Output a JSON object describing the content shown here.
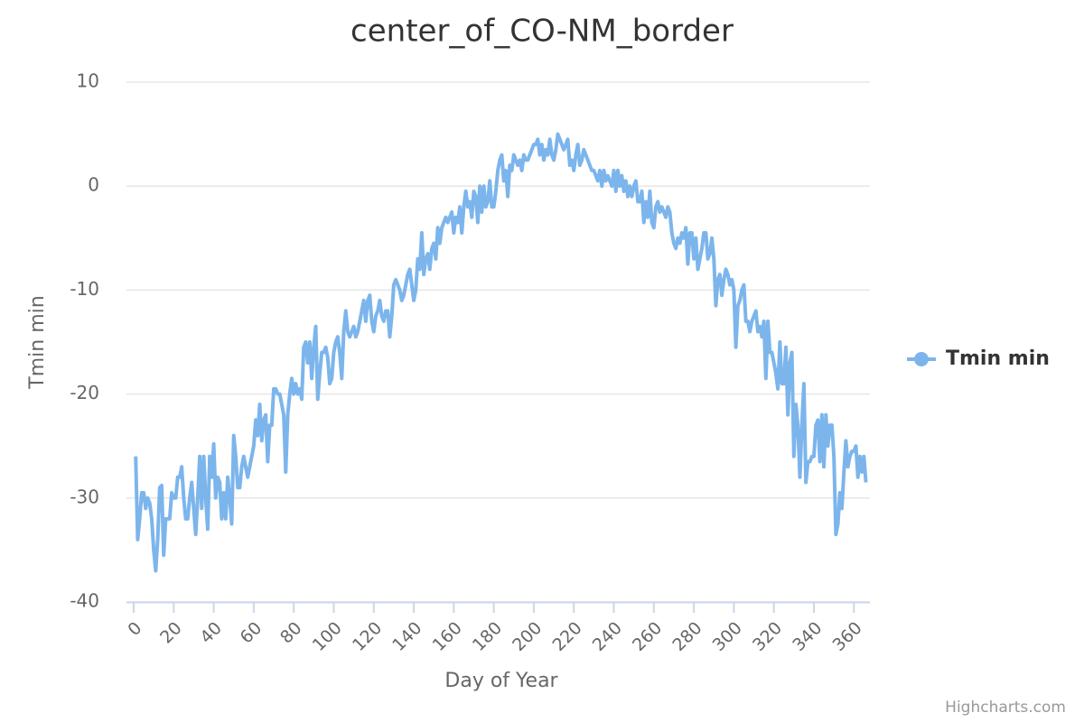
{
  "chart_data": {
    "type": "line",
    "title": "center_of_CO-NM_border",
    "x_label": "Day of Year",
    "y_label": "Tmin min",
    "credits": "Highcharts.com",
    "xlim": [
      0,
      368
    ],
    "ylim": [
      -40,
      10
    ],
    "xticks": [
      0,
      20,
      40,
      60,
      80,
      100,
      120,
      140,
      160,
      180,
      200,
      220,
      240,
      260,
      280,
      300,
      320,
      340,
      360
    ],
    "yticks": [
      -40,
      -30,
      -20,
      -10,
      0,
      10
    ],
    "grid": true,
    "legend": "right",
    "x": [
      1,
      2,
      3,
      4,
      5,
      6,
      7,
      8,
      9,
      10,
      11,
      12,
      13,
      14,
      15,
      16,
      17,
      18,
      19,
      20,
      21,
      22,
      23,
      24,
      25,
      26,
      27,
      28,
      29,
      30,
      31,
      32,
      33,
      34,
      35,
      36,
      37,
      38,
      39,
      40,
      41,
      42,
      43,
      44,
      45,
      46,
      47,
      48,
      49,
      50,
      51,
      52,
      53,
      54,
      55,
      56,
      57,
      58,
      59,
      60,
      61,
      62,
      63,
      64,
      65,
      66,
      67,
      68,
      69,
      70,
      71,
      72,
      73,
      74,
      75,
      76,
      77,
      78,
      79,
      80,
      81,
      82,
      83,
      84,
      85,
      86,
      87,
      88,
      89,
      90,
      91,
      92,
      93,
      94,
      95,
      96,
      97,
      98,
      99,
      100,
      101,
      102,
      103,
      104,
      105,
      106,
      107,
      108,
      109,
      110,
      111,
      112,
      113,
      114,
      115,
      116,
      117,
      118,
      119,
      120,
      121,
      122,
      123,
      124,
      125,
      126,
      127,
      128,
      129,
      130,
      131,
      132,
      133,
      134,
      135,
      136,
      137,
      138,
      139,
      140,
      141,
      142,
      143,
      144,
      145,
      146,
      147,
      148,
      149,
      150,
      151,
      152,
      153,
      154,
      155,
      156,
      157,
      158,
      159,
      160,
      161,
      162,
      163,
      164,
      165,
      166,
      167,
      168,
      169,
      170,
      171,
      172,
      173,
      174,
      175,
      176,
      177,
      178,
      179,
      180,
      181,
      182,
      183,
      184,
      185,
      186,
      187,
      188,
      189,
      190,
      191,
      192,
      193,
      194,
      195,
      196,
      197,
      198,
      199,
      200,
      201,
      202,
      203,
      204,
      205,
      206,
      207,
      208,
      209,
      210,
      211,
      212,
      213,
      214,
      215,
      216,
      217,
      218,
      219,
      220,
      221,
      222,
      223,
      224,
      225,
      226,
      227,
      228,
      229,
      230,
      231,
      232,
      233,
      234,
      235,
      236,
      237,
      238,
      239,
      240,
      241,
      242,
      243,
      244,
      245,
      246,
      247,
      248,
      249,
      250,
      251,
      252,
      253,
      254,
      255,
      256,
      257,
      258,
      259,
      260,
      261,
      262,
      263,
      264,
      265,
      266,
      267,
      268,
      269,
      270,
      271,
      272,
      273,
      274,
      275,
      276,
      277,
      278,
      279,
      280,
      281,
      282,
      283,
      284,
      285,
      286,
      287,
      288,
      289,
      290,
      291,
      292,
      293,
      294,
      295,
      296,
      297,
      298,
      299,
      300,
      301,
      302,
      303,
      304,
      305,
      306,
      307,
      308,
      309,
      310,
      311,
      312,
      313,
      314,
      315,
      316,
      317,
      318,
      319,
      320,
      321,
      322,
      323,
      324,
      325,
      326,
      327,
      328,
      329,
      330,
      331,
      332,
      333,
      334,
      335,
      336,
      337,
      338,
      339,
      340,
      341,
      342,
      343,
      344,
      345,
      346,
      347,
      348,
      349,
      350,
      351,
      352,
      353,
      354,
      355,
      356,
      357,
      358,
      359,
      360,
      361,
      362,
      363,
      364,
      365,
      366
    ],
    "series": [
      {
        "name": "Tmin min",
        "color": "#7cb5ec",
        "values": [
          -26,
          -34,
          -32,
          -29.5,
          -29.5,
          -31,
          -30,
          -30.5,
          -32,
          -35,
          -37,
          -34,
          -29,
          -28.8,
          -35.5,
          -32,
          -32,
          -32,
          -29.5,
          -30,
          -30,
          -28,
          -28,
          -27,
          -30,
          -32,
          -32,
          -30,
          -28.5,
          -31,
          -33.5,
          -30,
          -26,
          -31,
          -26,
          -30,
          -33,
          -26,
          -28,
          -24.8,
          -30,
          -28,
          -28.5,
          -32,
          -29.5,
          -32,
          -28,
          -30,
          -32.5,
          -24,
          -26,
          -29,
          -29,
          -27,
          -26,
          -27,
          -28,
          -27,
          -26,
          -25,
          -22.5,
          -24,
          -21,
          -24.5,
          -22.5,
          -22,
          -26.5,
          -23,
          -23,
          -19.5,
          -19.5,
          -20,
          -20,
          -21,
          -22,
          -27.5,
          -22,
          -20,
          -18.5,
          -20,
          -19,
          -20,
          -19.5,
          -20.5,
          -15.5,
          -15,
          -17,
          -15,
          -18.5,
          -15.5,
          -13.5,
          -20.5,
          -18,
          -16,
          -16,
          -15.5,
          -16.5,
          -19,
          -18.5,
          -16,
          -15,
          -14.5,
          -16,
          -18.5,
          -14,
          -12,
          -14,
          -14.5,
          -14,
          -13.5,
          -14.5,
          -14,
          -13,
          -12,
          -11,
          -13,
          -11,
          -10.5,
          -13,
          -14,
          -12.5,
          -12,
          -11,
          -12.5,
          -13,
          -12,
          -12,
          -14.5,
          -12.5,
          -9.5,
          -9,
          -9.5,
          -10,
          -11,
          -10.5,
          -9.5,
          -8.5,
          -8,
          -9.5,
          -11,
          -10,
          -7,
          -8,
          -4.5,
          -8.5,
          -7,
          -6.5,
          -8,
          -6,
          -5.5,
          -7,
          -4,
          -5.5,
          -4,
          -3.5,
          -3,
          -3.5,
          -3,
          -2.5,
          -4.5,
          -3,
          -3.5,
          -2,
          -4.5,
          -2,
          -0.5,
          -2,
          -1.5,
          -3,
          -0.5,
          -1,
          -3.5,
          0,
          -2.5,
          0,
          -2,
          -1.5,
          0.5,
          -2,
          -2,
          -0.5,
          1.5,
          2.5,
          3,
          0.5,
          1.5,
          -1,
          2,
          1.5,
          3,
          2.5,
          2,
          2.5,
          1.5,
          3,
          2.5,
          2.5,
          3,
          3.5,
          4,
          4,
          4.5,
          3,
          4,
          2.5,
          3.5,
          3,
          4.5,
          3,
          2.5,
          3.5,
          5,
          4.5,
          4,
          3.5,
          4,
          4.5,
          2,
          2.5,
          1.5,
          3,
          4,
          2,
          2.5,
          3.5,
          3,
          2.5,
          2,
          1.5,
          1.5,
          1,
          0.5,
          1.5,
          0,
          1.5,
          0.5,
          1,
          0.5,
          0,
          1.5,
          -0.5,
          1.5,
          0,
          1,
          -0.5,
          0.5,
          -1,
          0,
          -1,
          0,
          0.5,
          -1.5,
          -1.5,
          -0.5,
          -3.5,
          -1.5,
          -3,
          -0.5,
          -3.5,
          -4,
          -2,
          -1.5,
          -2.5,
          -2,
          -2.5,
          -3,
          -2,
          -2.5,
          -4.5,
          -5.5,
          -6,
          -5,
          -5.5,
          -4.5,
          -5,
          -4,
          -7.5,
          -4.5,
          -4.5,
          -7,
          -5,
          -8,
          -7,
          -6,
          -4.5,
          -4.5,
          -7,
          -6.5,
          -5,
          -7,
          -11.5,
          -9,
          -8.5,
          -10.5,
          -9,
          -8,
          -8.5,
          -9.5,
          -9,
          -10,
          -15.5,
          -11.5,
          -11,
          -10,
          -9.5,
          -13,
          -13,
          -14,
          -13,
          -12.5,
          -12,
          -14,
          -13.5,
          -14.5,
          -13,
          -18.5,
          -13,
          -16,
          -16,
          -17,
          -18,
          -19.5,
          -15,
          -19,
          -19,
          -15.5,
          -22,
          -17,
          -16,
          -26,
          -21,
          -23,
          -28,
          -23,
          -19,
          -28.5,
          -26.5,
          -26.5,
          -26,
          -26,
          -23,
          -22.5,
          -26.5,
          -22,
          -27,
          -22,
          -25,
          -23,
          -23,
          -26,
          -33.5,
          -32.5,
          -29.5,
          -31,
          -27.5,
          -24.5,
          -27,
          -26,
          -25.5,
          -25.5,
          -25,
          -28,
          -26,
          -27.5,
          -26,
          -28.5
        ]
      }
    ]
  }
}
